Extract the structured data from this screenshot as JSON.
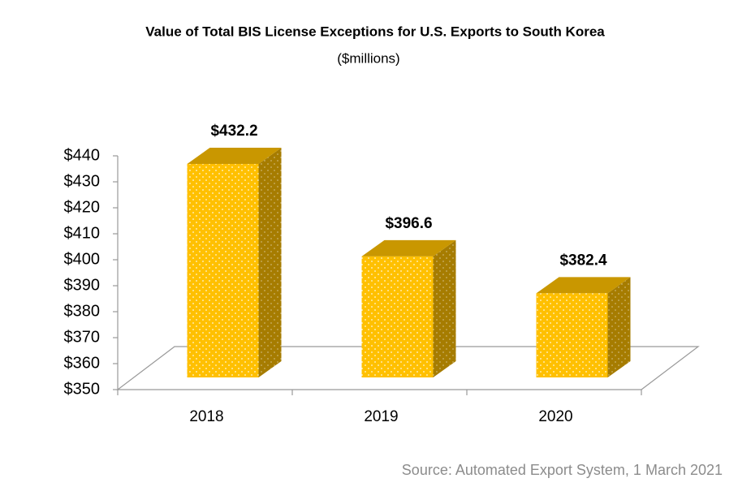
{
  "chart_data": {
    "type": "bar3d",
    "title": "Value of Total BIS License Exceptions for U.S. Exports to South Korea",
    "subtitle": "($millions)",
    "categories": [
      "2018",
      "2019",
      "2020"
    ],
    "values": [
      432.2,
      396.6,
      382.4
    ],
    "value_labels": [
      "$432.2",
      "$396.6",
      "$382.4"
    ],
    "color": "#ffc000",
    "ylim": [
      350,
      440
    ],
    "yticks": [
      {
        "value": 350,
        "label": "$350"
      },
      {
        "value": 360,
        "label": "$360"
      },
      {
        "value": 370,
        "label": "$370"
      },
      {
        "value": 380,
        "label": "$380"
      },
      {
        "value": 390,
        "label": "$390"
      },
      {
        "value": 400,
        "label": "$400"
      },
      {
        "value": 410,
        "label": "$410"
      },
      {
        "value": 420,
        "label": "$420"
      },
      {
        "value": 430,
        "label": "$430"
      },
      {
        "value": 440,
        "label": "$440"
      }
    ],
    "source": "Source: Automated Export System, 1 March 2021"
  }
}
